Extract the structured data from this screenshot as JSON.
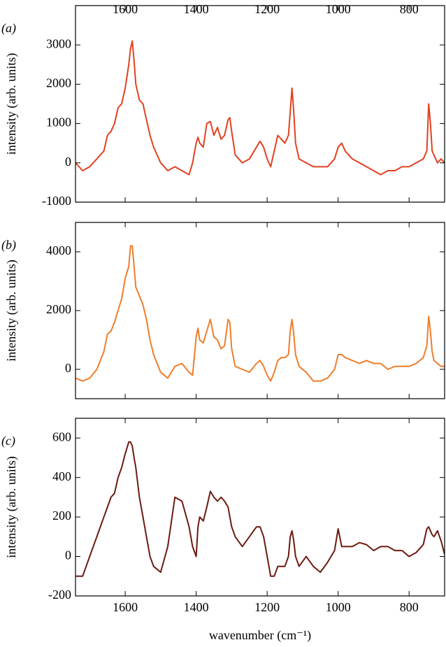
{
  "chart_data": [
    {
      "type": "line",
      "panel_label": "(a)",
      "ylabel": "intensity (arb. units)",
      "xtick_position": "top",
      "x": [
        1740,
        1720,
        1700,
        1680,
        1660,
        1650,
        1640,
        1630,
        1620,
        1610,
        1600,
        1590,
        1585,
        1580,
        1575,
        1570,
        1560,
        1550,
        1540,
        1530,
        1520,
        1500,
        1480,
        1460,
        1440,
        1420,
        1410,
        1400,
        1395,
        1390,
        1380,
        1370,
        1360,
        1350,
        1340,
        1330,
        1320,
        1310,
        1305,
        1300,
        1290,
        1270,
        1250,
        1230,
        1220,
        1210,
        1200,
        1190,
        1180,
        1170,
        1160,
        1150,
        1140,
        1135,
        1130,
        1125,
        1120,
        1110,
        1090,
        1070,
        1050,
        1030,
        1010,
        1000,
        990,
        980,
        960,
        940,
        920,
        900,
        880,
        860,
        840,
        820,
        800,
        780,
        760,
        750,
        745,
        740,
        735,
        730,
        720,
        710,
        700
      ],
      "color": "#e2411f",
      "values": [
        0,
        -200,
        -100,
        100,
        300,
        700,
        800,
        1000,
        1400,
        1500,
        1900,
        2500,
        2900,
        3100,
        2600,
        2000,
        1600,
        1500,
        1100,
        700,
        400,
        0,
        -200,
        -100,
        -200,
        -300,
        0,
        500,
        650,
        500,
        400,
        1000,
        1050,
        700,
        900,
        600,
        700,
        1100,
        1150,
        800,
        200,
        0,
        100,
        400,
        550,
        400,
        100,
        -100,
        300,
        700,
        600,
        500,
        700,
        1300,
        1900,
        1300,
        500,
        100,
        0,
        -100,
        -100,
        -100,
        100,
        400,
        500,
        300,
        100,
        0,
        -100,
        -200,
        -300,
        -200,
        -200,
        -100,
        -100,
        0,
        100,
        300,
        1500,
        1000,
        300,
        200,
        0,
        100,
        0
      ],
      "xlim": [
        1740,
        700
      ],
      "xticks": [
        1600,
        1400,
        1200,
        1000,
        800
      ],
      "ylim": [
        -1000,
        4000
      ],
      "yticks": [
        -1000,
        0,
        1000,
        2000,
        3000
      ]
    },
    {
      "type": "line",
      "panel_label": "(b)",
      "ylabel": "intensity (arb. units)",
      "x": [
        1740,
        1720,
        1700,
        1680,
        1660,
        1650,
        1640,
        1630,
        1620,
        1610,
        1600,
        1590,
        1585,
        1580,
        1575,
        1570,
        1560,
        1550,
        1540,
        1530,
        1520,
        1500,
        1480,
        1460,
        1440,
        1420,
        1410,
        1400,
        1395,
        1390,
        1380,
        1370,
        1360,
        1350,
        1340,
        1330,
        1320,
        1310,
        1305,
        1300,
        1290,
        1270,
        1250,
        1230,
        1220,
        1210,
        1200,
        1190,
        1180,
        1170,
        1160,
        1150,
        1140,
        1135,
        1130,
        1125,
        1120,
        1110,
        1090,
        1070,
        1050,
        1030,
        1010,
        1000,
        990,
        980,
        960,
        940,
        920,
        900,
        880,
        860,
        840,
        820,
        800,
        780,
        760,
        750,
        745,
        740,
        735,
        730,
        720,
        710,
        700
      ],
      "color": "#f07d2b",
      "values": [
        -300,
        -400,
        -300,
        0,
        600,
        1200,
        1300,
        1600,
        2000,
        2400,
        3100,
        3500,
        4200,
        4200,
        3500,
        2800,
        2500,
        2200,
        1700,
        1000,
        500,
        -100,
        -300,
        100,
        200,
        -100,
        -200,
        1100,
        1400,
        1000,
        900,
        1300,
        1700,
        1100,
        1000,
        700,
        800,
        1700,
        1600,
        700,
        100,
        0,
        -100,
        200,
        300,
        100,
        -200,
        -400,
        -100,
        300,
        400,
        400,
        500,
        1300,
        1700,
        1200,
        500,
        100,
        -100,
        -400,
        -400,
        -300,
        0,
        500,
        500,
        400,
        300,
        200,
        300,
        200,
        200,
        0,
        100,
        100,
        100,
        200,
        400,
        800,
        1800,
        1300,
        600,
        300,
        200,
        100,
        100
      ],
      "xlim": [
        1740,
        700
      ],
      "xticks": [
        1600,
        1400,
        1200,
        1000,
        800
      ],
      "ylim": [
        -1000,
        5000
      ],
      "yticks": [
        0,
        2000,
        4000
      ]
    },
    {
      "type": "line",
      "panel_label": "(c)",
      "ylabel": "intensity (arb. units)",
      "xlabel": "wavenumber (cm⁻¹)",
      "xtick_position": "bottom",
      "x": [
        1740,
        1720,
        1700,
        1680,
        1660,
        1650,
        1640,
        1630,
        1620,
        1610,
        1600,
        1590,
        1585,
        1580,
        1575,
        1570,
        1560,
        1550,
        1540,
        1530,
        1520,
        1500,
        1480,
        1460,
        1440,
        1420,
        1410,
        1400,
        1395,
        1390,
        1380,
        1370,
        1360,
        1350,
        1340,
        1330,
        1320,
        1310,
        1305,
        1300,
        1290,
        1270,
        1250,
        1230,
        1220,
        1210,
        1200,
        1190,
        1180,
        1170,
        1160,
        1150,
        1140,
        1135,
        1130,
        1125,
        1120,
        1110,
        1090,
        1070,
        1050,
        1030,
        1010,
        1000,
        990,
        980,
        960,
        940,
        920,
        900,
        880,
        860,
        840,
        820,
        800,
        780,
        760,
        750,
        745,
        740,
        735,
        730,
        720,
        710,
        700
      ],
      "color": "#6b1b0f",
      "values": [
        -100,
        -100,
        0,
        100,
        200,
        250,
        300,
        320,
        400,
        450,
        520,
        580,
        580,
        560,
        500,
        450,
        300,
        200,
        100,
        0,
        -50,
        -80,
        50,
        300,
        280,
        150,
        50,
        0,
        150,
        200,
        180,
        250,
        330,
        300,
        280,
        300,
        280,
        250,
        200,
        150,
        100,
        50,
        100,
        150,
        150,
        100,
        0,
        -100,
        -100,
        -50,
        -50,
        -50,
        0,
        100,
        130,
        80,
        0,
        -50,
        0,
        -50,
        -80,
        -30,
        30,
        140,
        50,
        50,
        50,
        70,
        60,
        30,
        50,
        50,
        30,
        30,
        0,
        20,
        60,
        140,
        150,
        130,
        110,
        100,
        130,
        80,
        10
      ],
      "xlim": [
        1740,
        700
      ],
      "xticks": [
        1600,
        1400,
        1200,
        1000,
        800
      ],
      "ylim": [
        -200,
        700
      ],
      "yticks": [
        -200,
        0,
        200,
        400,
        600
      ]
    }
  ]
}
